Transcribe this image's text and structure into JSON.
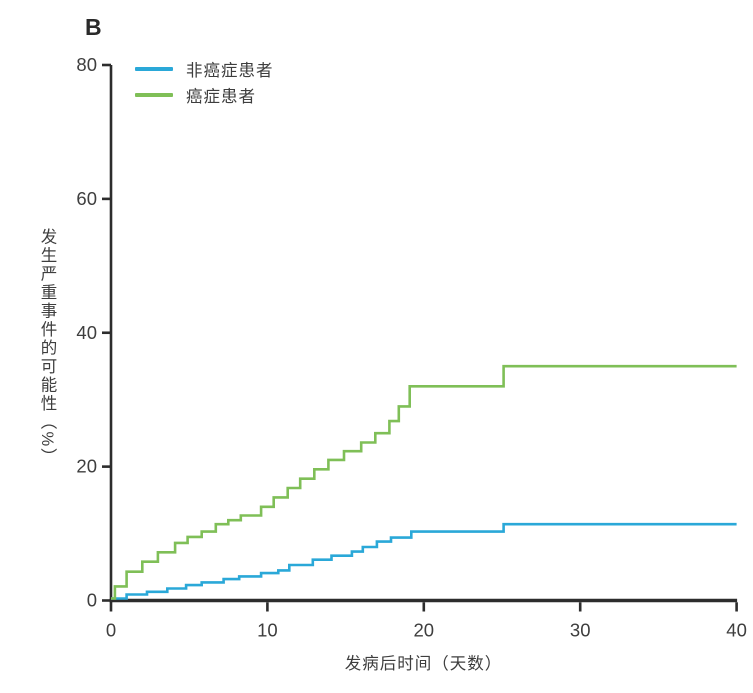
{
  "panel_label": "B",
  "colors": {
    "axis": "#2d2d2d",
    "text": "#3e3e3e",
    "noncancer_line": "#2aa8d8",
    "cancer_line": "#7fbf57"
  },
  "chart_data": {
    "type": "line",
    "step": true,
    "title": "",
    "xlabel": "发病后时间（天数）",
    "ylabel": "发生严重事件的可能性（%）",
    "xlim": [
      0,
      40
    ],
    "ylim": [
      0,
      80
    ],
    "xticks": [
      0,
      10,
      20,
      30,
      40
    ],
    "yticks": [
      0,
      20,
      40,
      60,
      80
    ],
    "grid": false,
    "legend_position": "top-left",
    "series": [
      {
        "name": "非癌症患者",
        "color": "#2aa8d8",
        "end_x": 40,
        "points": [
          [
            0,
            0.3
          ],
          [
            1.0,
            0.9
          ],
          [
            2.3,
            1.3
          ],
          [
            3.6,
            1.8
          ],
          [
            4.8,
            2.3
          ],
          [
            5.8,
            2.7
          ],
          [
            7.2,
            3.2
          ],
          [
            8.2,
            3.6
          ],
          [
            9.6,
            4.1
          ],
          [
            10.7,
            4.5
          ],
          [
            11.4,
            5.3
          ],
          [
            12.9,
            6.1
          ],
          [
            14.1,
            6.7
          ],
          [
            15.4,
            7.3
          ],
          [
            16.1,
            8.0
          ],
          [
            17.0,
            8.8
          ],
          [
            17.9,
            9.4
          ],
          [
            19.2,
            10.3
          ],
          [
            25.1,
            11.4
          ]
        ]
      },
      {
        "name": "癌症患者",
        "color": "#7fbf57",
        "end_x": 40,
        "points": [
          [
            0,
            0.3
          ],
          [
            0.25,
            2.1
          ],
          [
            1.0,
            4.3
          ],
          [
            2.0,
            5.8
          ],
          [
            3.0,
            7.2
          ],
          [
            4.1,
            8.6
          ],
          [
            4.9,
            9.5
          ],
          [
            5.8,
            10.3
          ],
          [
            6.7,
            11.4
          ],
          [
            7.5,
            12.0
          ],
          [
            8.3,
            12.7
          ],
          [
            9.6,
            14.0
          ],
          [
            10.4,
            15.4
          ],
          [
            11.3,
            16.8
          ],
          [
            12.1,
            18.2
          ],
          [
            13.0,
            19.6
          ],
          [
            13.9,
            21.0
          ],
          [
            14.9,
            22.3
          ],
          [
            16.0,
            23.6
          ],
          [
            16.9,
            25.0
          ],
          [
            17.8,
            26.8
          ],
          [
            18.4,
            29.0
          ],
          [
            19.1,
            32.0
          ],
          [
            25.1,
            35.0
          ]
        ]
      }
    ]
  }
}
